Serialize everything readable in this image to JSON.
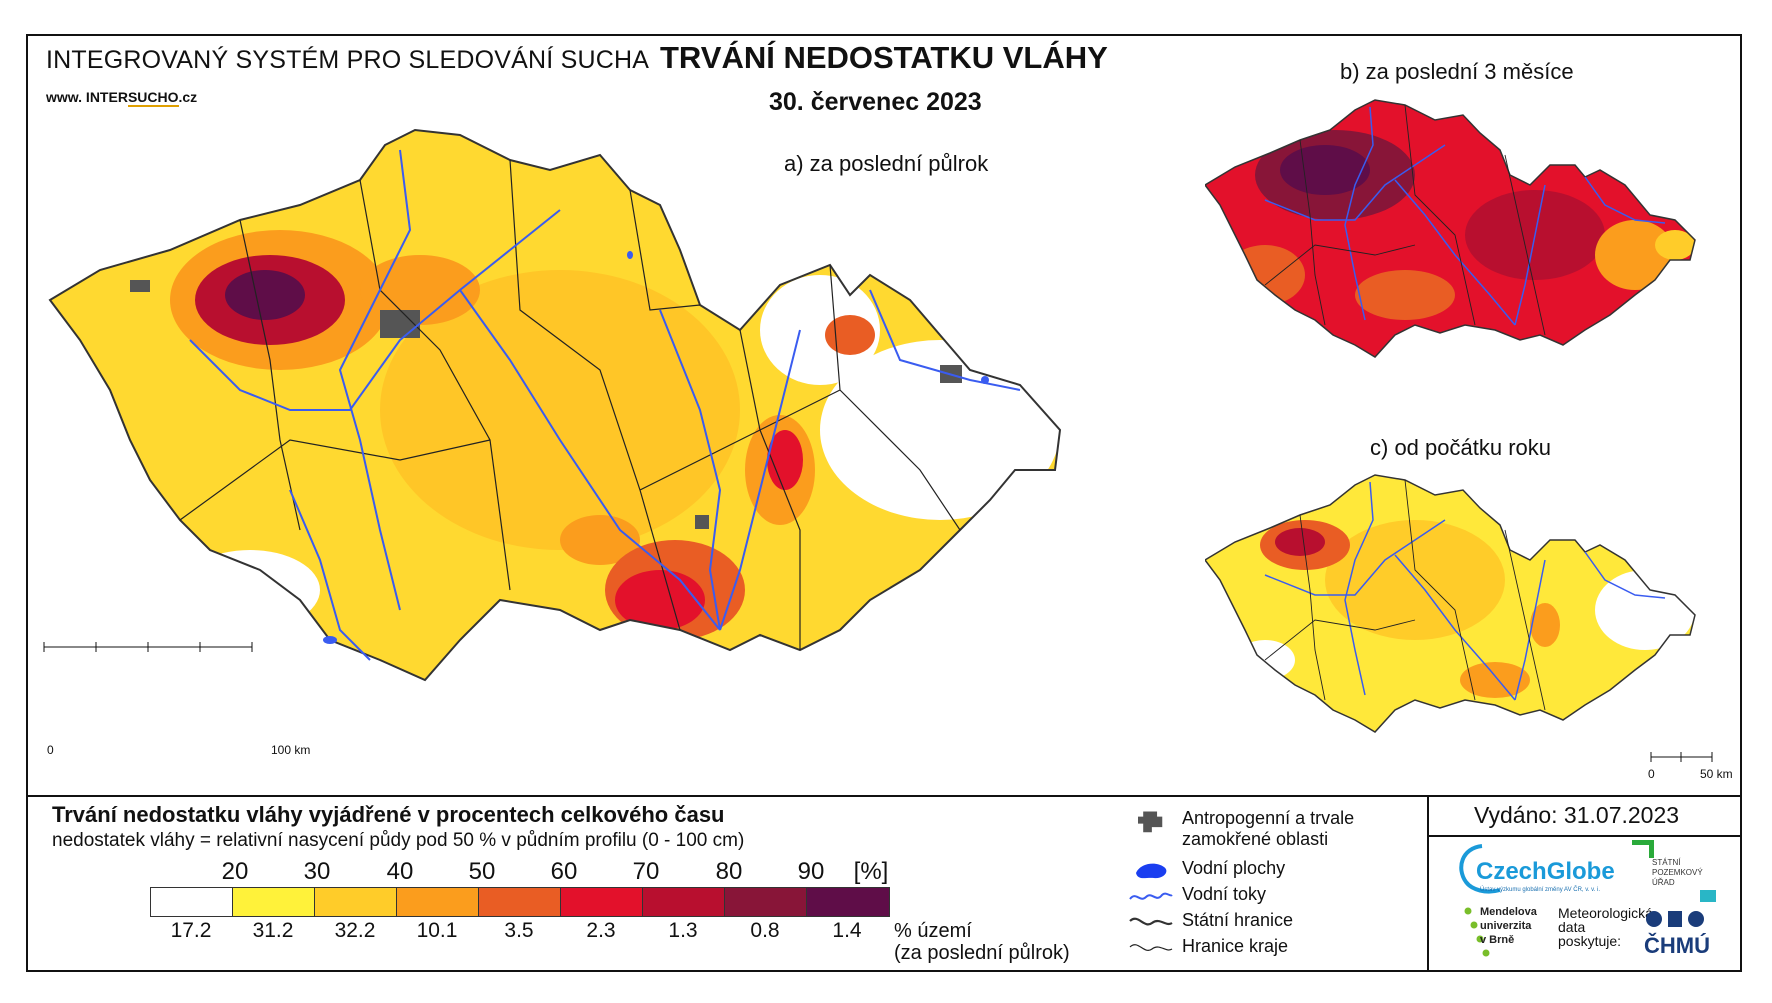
{
  "header": {
    "system_name": "INTEGROVANÝ SYSTÉM PRO SLEDOVÁNÍ SUCHA",
    "web_prefix": "www. INTER",
    "web_highlight": "SUCHO",
    "web_suffix": ".cz",
    "title": "TRVÁNÍ NEDOSTATKU VLÁHY",
    "date": "30. červenec 2023"
  },
  "maps": {
    "a_caption": "a) za poslední půlrok",
    "b_caption": "b) za poslední 3 měsíce",
    "c_caption": "c) od počátku roku",
    "a_scale_start": "0",
    "a_scale_end": "100 km",
    "c_scale_start": "0",
    "c_scale_end": "50 km"
  },
  "legend": {
    "title": "Trvání nedostatku vláhy vyjádřené v procentech celkového času",
    "subtitle": "nedostatek vláhy = relativní nasycení půdy pod 50 % v půdním profilu (0 - 100 cm)",
    "ticks": [
      "20",
      "30",
      "40",
      "50",
      "60",
      "70",
      "80",
      "90",
      "[%]"
    ],
    "colors": [
      "#ffffff",
      "#fff23a",
      "#ffcc29",
      "#fb9d1d",
      "#e95d24",
      "#e3112b",
      "#b80f2f",
      "#881538",
      "#5f0d48"
    ],
    "values": [
      "17.2",
      "31.2",
      "32.2",
      "10.1",
      "3.5",
      "2.3",
      "1.3",
      "0.8",
      "1.4"
    ],
    "share_line1": "% území",
    "share_line2": "(za poslední půlrok)"
  },
  "symbols": {
    "anthropogenic_line1": "Antropogenní a trvale",
    "anthropogenic_line2": "zamokřené oblasti",
    "water_bodies": "Vodní plochy",
    "rivers": "Vodní toky",
    "state_border": "Státní hranice",
    "region_border": "Hranice kraje"
  },
  "issued": "Vydáno: 31.07.2023",
  "logos": {
    "czechglobe": "CzechGlobe",
    "czechglobe_sub": "Ústav výzkumu globální změny AV ČR, v. v. i.",
    "spu_line1": "STÁTNÍ",
    "spu_line2": "POZEMKOVÝ",
    "spu_line3": "ÚŘAD",
    "mendelu_line1": "Mendelova",
    "mendelu_line2": "univerzita",
    "mendelu_line3": "v Brně",
    "met_line1": "Meteorologická",
    "met_line2": "data",
    "met_line3": "poskytuje:",
    "chmu": "ČHMÚ"
  }
}
